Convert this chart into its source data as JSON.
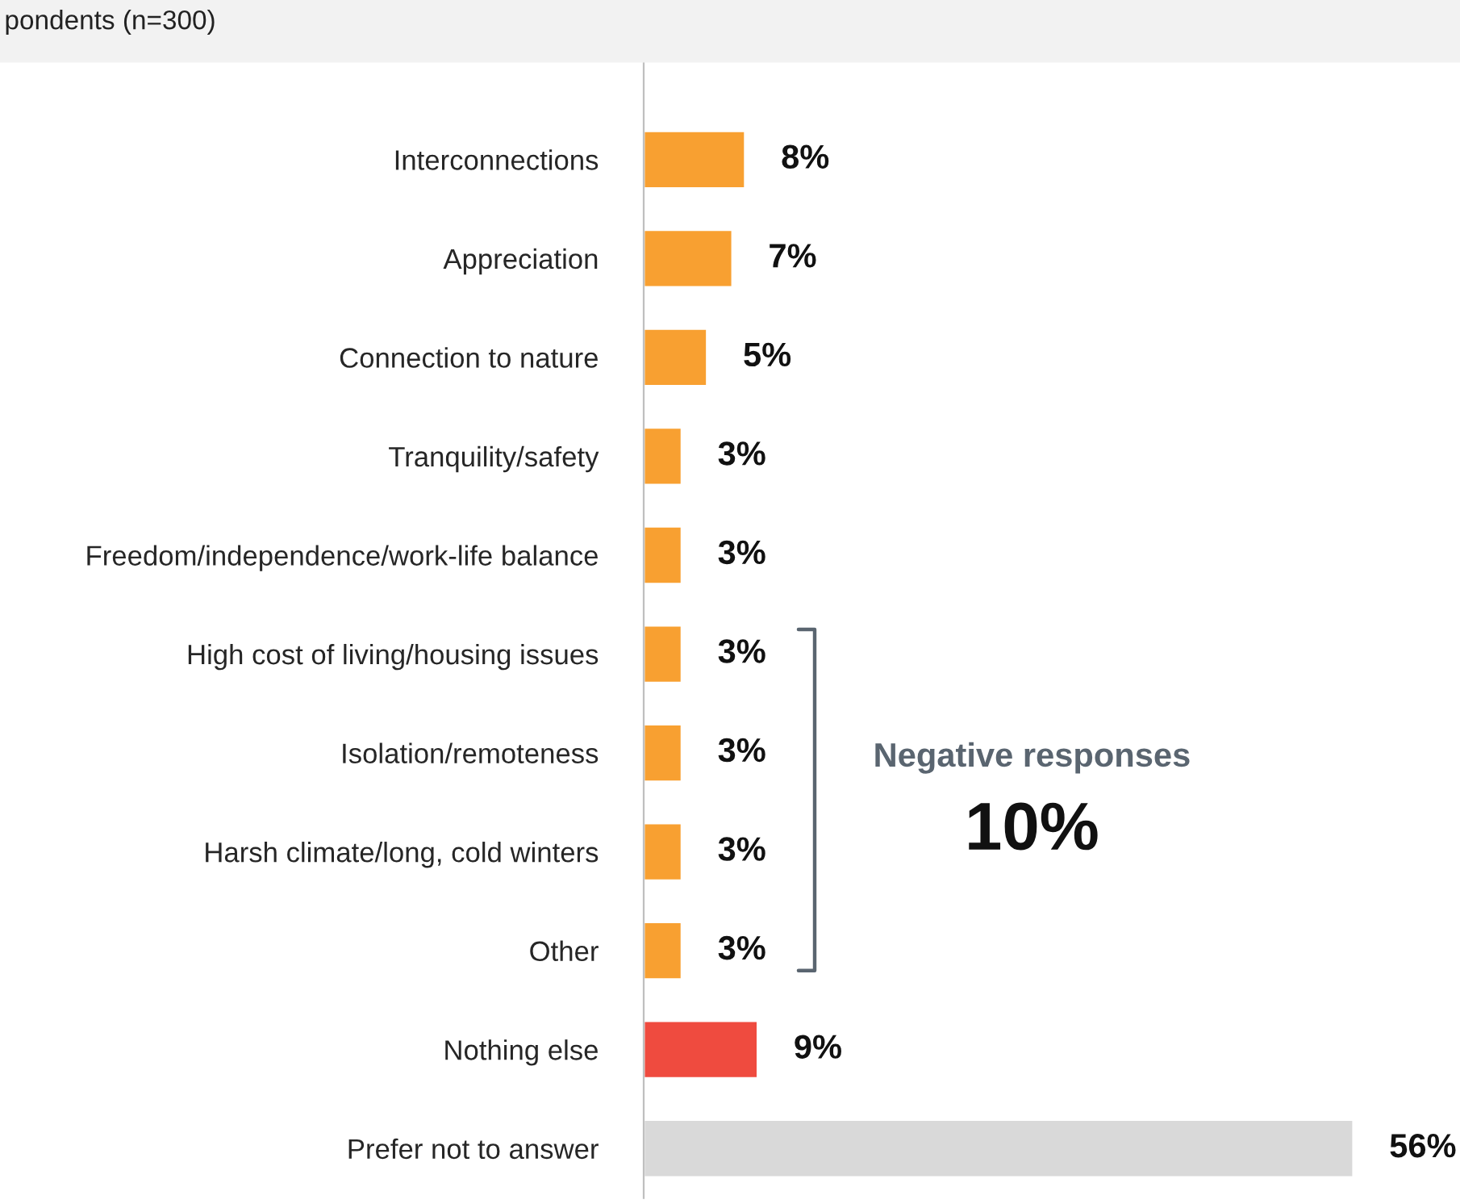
{
  "chart_data": {
    "type": "bar",
    "orientation": "horizontal",
    "title": "pondents (n=300)",
    "categories": [
      "Interconnections",
      "Appreciation",
      "Connection to nature",
      "Tranquility/safety",
      "Freedom/independence/work-life balance",
      "High cost of living/housing issues",
      "Isolation/remoteness",
      "Harsh climate/long, cold winters",
      "Other",
      "Nothing else",
      "Prefer not to answer"
    ],
    "values": [
      8,
      7,
      5,
      3,
      3,
      3,
      3,
      3,
      3,
      9,
      56
    ],
    "value_labels": [
      "8%",
      "7%",
      "5%",
      "3%",
      "3%",
      "3%",
      "3%",
      "3%",
      "3%",
      "9%",
      "56%"
    ],
    "colors": [
      "#f8a031",
      "#f8a031",
      "#f8a031",
      "#f8a031",
      "#f8a031",
      "#f8a031",
      "#f8a031",
      "#f8a031",
      "#f8a031",
      "#ef4b3f",
      "#d9d9d9"
    ],
    "annotations": [
      "Negative responses",
      "10%"
    ],
    "grid": false,
    "legend": false
  }
}
